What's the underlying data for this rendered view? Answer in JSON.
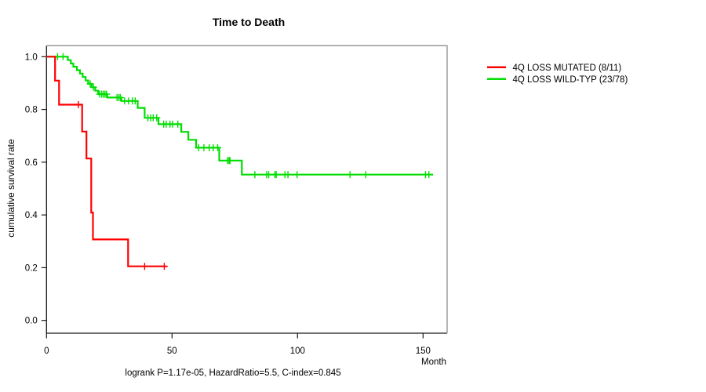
{
  "title": "Time to Death",
  "annotation": "logrank P=1.17e-05, HazardRatio=5.5, C-index=0.845",
  "axes": {
    "x": {
      "label": "Month",
      "ticks": [
        0,
        50,
        100,
        150
      ],
      "lim": [
        0,
        160
      ]
    },
    "y": {
      "label": "cumulative survival rate",
      "ticks": [
        {
          "value": 1.0,
          "label": "1.0"
        },
        {
          "value": 0.8,
          "label": "0.8"
        },
        {
          "value": 0.6,
          "label": "0.6"
        },
        {
          "value": 0.4,
          "label": "0.4"
        },
        {
          "value": 0.2,
          "label": "0.2"
        },
        {
          "value": 0.0,
          "label": "0.0"
        }
      ],
      "lim": [
        0,
        1
      ]
    }
  },
  "legend": {
    "items": [
      {
        "label": "4Q LOSS MUTATED (8/11)",
        "color": "#ff0000"
      },
      {
        "label": "4Q LOSS WILD-TYP (23/78)",
        "color": "#00dd00"
      }
    ]
  },
  "colors": {
    "curve_mutated": "#ff0000",
    "curve_wildtype": "#00dd00",
    "box_shadow": "#8e8e8e",
    "axis": "#1a1a1a"
  },
  "chart_data": {
    "type": "line",
    "subtype": "kaplan_meier_step",
    "title": "Time to Death",
    "xlabel": "Month",
    "ylabel": "cumulative survival rate",
    "xlim": [
      0,
      160
    ],
    "ylim": [
      0,
      1
    ],
    "grid": false,
    "legend_position": "right-outside",
    "series": [
      {
        "name": "4Q LOSS WILD-TYP (23/78)",
        "color": "#00dd00",
        "n": 78,
        "events": 23,
        "steps": [
          [
            0,
            1.0
          ],
          [
            8.5,
            0.987
          ],
          [
            9.7,
            0.974
          ],
          [
            10.7,
            0.962
          ],
          [
            12.1,
            0.949
          ],
          [
            13.3,
            0.936
          ],
          [
            14.4,
            0.923
          ],
          [
            15.6,
            0.91
          ],
          [
            16.6,
            0.897
          ],
          [
            18.0,
            0.884
          ],
          [
            19.4,
            0.871
          ],
          [
            20.6,
            0.858
          ],
          [
            24.2,
            0.845
          ],
          [
            29.8,
            0.832
          ],
          [
            36.3,
            0.806
          ],
          [
            39.1,
            0.768
          ],
          [
            44.6,
            0.744
          ],
          [
            53.7,
            0.715
          ],
          [
            56.5,
            0.685
          ],
          [
            59.6,
            0.655
          ],
          [
            68.8,
            0.606
          ],
          [
            77.8,
            0.553
          ]
        ],
        "end_time": 154,
        "censors": [
          [
            4.4,
            1.0
          ],
          [
            6.6,
            1.0
          ],
          [
            17.4,
            0.897
          ],
          [
            18.7,
            0.884
          ],
          [
            21.2,
            0.858
          ],
          [
            22.0,
            0.858
          ],
          [
            22.7,
            0.858
          ],
          [
            23.3,
            0.858
          ],
          [
            23.9,
            0.858
          ],
          [
            28.1,
            0.845
          ],
          [
            28.8,
            0.845
          ],
          [
            29.4,
            0.845
          ],
          [
            31.1,
            0.832
          ],
          [
            32.7,
            0.832
          ],
          [
            34.2,
            0.832
          ],
          [
            35.3,
            0.832
          ],
          [
            40.4,
            0.768
          ],
          [
            41.5,
            0.768
          ],
          [
            42.5,
            0.768
          ],
          [
            43.9,
            0.768
          ],
          [
            46.7,
            0.744
          ],
          [
            47.7,
            0.744
          ],
          [
            49.2,
            0.744
          ],
          [
            50.2,
            0.744
          ],
          [
            52.3,
            0.744
          ],
          [
            60.6,
            0.655
          ],
          [
            62.7,
            0.655
          ],
          [
            64.8,
            0.655
          ],
          [
            66.4,
            0.655
          ],
          [
            68.2,
            0.655
          ],
          [
            72.1,
            0.606
          ],
          [
            72.7,
            0.606
          ],
          [
            73.1,
            0.606
          ],
          [
            83.0,
            0.553
          ],
          [
            87.7,
            0.553
          ],
          [
            88.5,
            0.553
          ],
          [
            91.0,
            0.553
          ],
          [
            91.5,
            0.553
          ],
          [
            95.0,
            0.553
          ],
          [
            96.2,
            0.553
          ],
          [
            99.8,
            0.553
          ],
          [
            120.9,
            0.553
          ],
          [
            127.2,
            0.553
          ],
          [
            151.0,
            0.553
          ],
          [
            152.3,
            0.553
          ]
        ]
      },
      {
        "name": "4Q LOSS MUTATED (8/11)",
        "color": "#ff0000",
        "n": 11,
        "events": 8,
        "steps": [
          [
            0,
            1.0
          ],
          [
            3.4,
            0.909
          ],
          [
            5.0,
            0.818
          ],
          [
            14.2,
            0.716
          ],
          [
            15.9,
            0.614
          ],
          [
            17.8,
            0.409
          ],
          [
            18.5,
            0.307
          ],
          [
            32.5,
            0.205
          ]
        ],
        "end_time": 47.9,
        "censors": [
          [
            12.7,
            0.818
          ],
          [
            39.1,
            0.205
          ],
          [
            46.9,
            0.205
          ]
        ]
      }
    ]
  }
}
